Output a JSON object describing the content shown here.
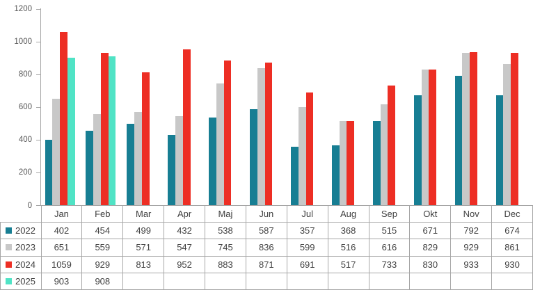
{
  "chart_data": {
    "type": "bar",
    "title": "",
    "xlabel": "",
    "ylabel": "",
    "categories": [
      "Jan",
      "Feb",
      "Mar",
      "Apr",
      "Maj",
      "Jun",
      "Jul",
      "Aug",
      "Sep",
      "Okt",
      "Nov",
      "Dec"
    ],
    "series": [
      {
        "name": "2022",
        "color": "#177e93",
        "values": [
          402,
          454,
          499,
          432,
          538,
          587,
          357,
          368,
          515,
          671,
          792,
          674
        ]
      },
      {
        "name": "2023",
        "color": "#c8c8c8",
        "values": [
          651,
          559,
          571,
          547,
          745,
          836,
          599,
          516,
          616,
          829,
          929,
          861
        ]
      },
      {
        "name": "2024",
        "color": "#ed2e24",
        "values": [
          1059,
          929,
          813,
          952,
          883,
          871,
          691,
          517,
          733,
          830,
          933,
          930
        ]
      },
      {
        "name": "2025",
        "color": "#50e3c5",
        "values": [
          903,
          908,
          null,
          null,
          null,
          null,
          null,
          null,
          null,
          null,
          null,
          null
        ]
      }
    ],
    "ylim": [
      0,
      1200
    ],
    "yticks": [
      0,
      200,
      400,
      600,
      800,
      1000,
      1200
    ],
    "grid": false,
    "legend_position": "data-table-left",
    "data_table": true
  },
  "colors": {
    "axis": "#a6a6a6",
    "table_border": "#a6a6a6",
    "axis_text": "#555555",
    "table_text": "#3f3f3f",
    "background": "#ffffff"
  }
}
